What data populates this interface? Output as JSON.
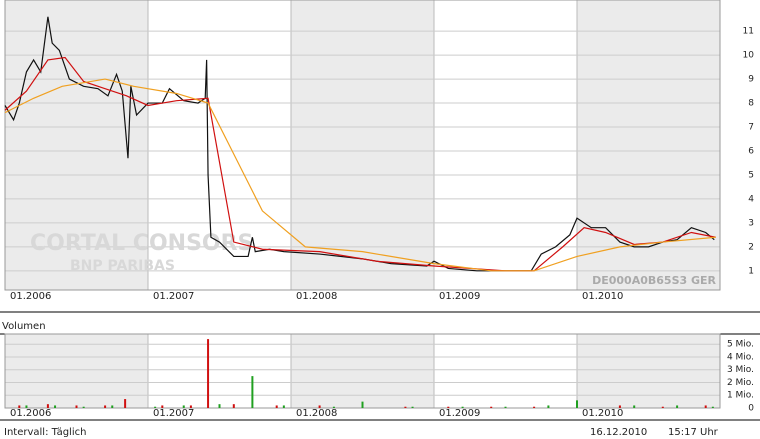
{
  "chart_data": [
    {
      "type": "line",
      "xlim": [
        2006.0,
        2011.0
      ],
      "xticks": [
        {
          "value": 2006,
          "label": "01.2006"
        },
        {
          "value": 2007,
          "label": "01.2007"
        },
        {
          "value": 2008,
          "label": "01.2008"
        },
        {
          "value": 2009,
          "label": "01.2009"
        },
        {
          "value": 2010,
          "label": "01.2010"
        }
      ],
      "ylim": [
        0.2,
        12.3
      ],
      "yticks": [
        1,
        2,
        3,
        4,
        5,
        6,
        7,
        8,
        9,
        10,
        11
      ],
      "grid": true,
      "annotations": [
        "DE000A0B65S3  GER",
        "CORTAL CONSORS",
        "BNP PARIBAS"
      ],
      "series": [
        {
          "color": "#111111",
          "x": [
            2006.0,
            2006.03,
            2006.06,
            2006.1,
            2006.15,
            2006.2,
            2006.25,
            2006.3,
            2006.33,
            2006.38,
            2006.45,
            2006.55,
            2006.65,
            2006.72,
            2006.78,
            2006.82,
            2006.86,
            2006.88,
            2006.92,
            2007.0,
            2007.1,
            2007.15,
            2007.25,
            2007.35,
            2007.4,
            2007.41,
            2007.42,
            2007.44,
            2007.5,
            2007.6,
            2007.7,
            2007.73,
            2007.75,
            2007.85,
            2007.95,
            2008.2,
            2008.5,
            2008.7,
            2008.95,
            2009.0,
            2009.1,
            2009.3,
            2009.5,
            2009.68,
            2009.75,
            2009.85,
            2009.95,
            2010.0,
            2010.1,
            2010.2,
            2010.3,
            2010.4,
            2010.5,
            2010.6,
            2010.7,
            2010.8,
            2010.9,
            2010.96
          ],
          "values": [
            7.9,
            7.6,
            7.3,
            8.0,
            9.3,
            9.8,
            9.3,
            11.6,
            10.5,
            10.2,
            9.0,
            8.7,
            8.6,
            8.3,
            9.2,
            8.5,
            5.7,
            8.7,
            7.5,
            8.0,
            8.0,
            8.6,
            8.1,
            8.0,
            8.2,
            9.8,
            5.0,
            2.4,
            2.2,
            1.6,
            1.6,
            2.4,
            1.8,
            1.9,
            1.8,
            1.7,
            1.5,
            1.3,
            1.2,
            1.4,
            1.1,
            1.0,
            1.0,
            1.0,
            1.7,
            2.0,
            2.5,
            3.2,
            2.8,
            2.8,
            2.2,
            2.0,
            2.0,
            2.2,
            2.3,
            2.8,
            2.6,
            2.3
          ]
        },
        {
          "color": "#d01010",
          "x": [
            2006.0,
            2006.15,
            2006.3,
            2006.42,
            2006.55,
            2006.7,
            2006.85,
            2007.0,
            2007.2,
            2007.42,
            2007.6,
            2007.8,
            2008.2,
            2008.6,
            2009.0,
            2009.5,
            2009.7,
            2009.9,
            2010.05,
            2010.2,
            2010.4,
            2010.6,
            2010.8,
            2010.97
          ],
          "values": [
            7.7,
            8.5,
            9.8,
            9.9,
            8.9,
            8.6,
            8.3,
            7.9,
            8.1,
            8.2,
            2.2,
            1.9,
            1.8,
            1.4,
            1.2,
            1.0,
            1.0,
            2.0,
            2.8,
            2.6,
            2.1,
            2.2,
            2.6,
            2.4
          ]
        },
        {
          "color": "#f0a020",
          "x": [
            2006.0,
            2006.2,
            2006.4,
            2006.7,
            2006.9,
            2007.2,
            2007.42,
            2007.8,
            2008.1,
            2008.5,
            2009.0,
            2009.4,
            2009.7,
            2010.0,
            2010.3,
            2010.6,
            2010.97
          ],
          "values": [
            7.6,
            8.2,
            8.7,
            9.0,
            8.7,
            8.4,
            8.0,
            3.5,
            2.0,
            1.8,
            1.3,
            1.0,
            1.0,
            1.6,
            2.0,
            2.2,
            2.4
          ]
        }
      ]
    },
    {
      "type": "bar",
      "title": "Volumen",
      "xlim": [
        2006.0,
        2011.0
      ],
      "xticks": [
        {
          "value": 2006,
          "label": "01.2006"
        },
        {
          "value": 2007,
          "label": "01.2007"
        },
        {
          "value": 2008,
          "label": "01.2008"
        },
        {
          "value": 2009,
          "label": "01.2009"
        },
        {
          "value": 2010,
          "label": "01.2010"
        }
      ],
      "ylim": [
        0,
        5.8
      ],
      "yticks": [
        0,
        {
          "value": 1,
          "label": "1 Mio."
        },
        {
          "value": 2,
          "label": "2 Mio."
        },
        {
          "value": 3,
          "label": "3 Mio."
        },
        {
          "value": 4,
          "label": "4 Mio."
        },
        {
          "value": 5,
          "label": "5 Mio."
        }
      ],
      "grid": true,
      "series": [
        {
          "color": "#d01010",
          "x": [
            2006.1,
            2006.3,
            2006.5,
            2006.7,
            2006.84,
            2007.1,
            2007.3,
            2007.42,
            2007.6,
            2007.9,
            2008.2,
            2008.5,
            2008.8,
            2009.1,
            2009.4,
            2009.7,
            2010.0,
            2010.3,
            2010.6,
            2010.9
          ],
          "values": [
            0.2,
            0.3,
            0.2,
            0.2,
            0.7,
            0.2,
            0.2,
            5.4,
            0.3,
            0.2,
            0.2,
            0.2,
            0.1,
            0.1,
            0.1,
            0.1,
            0.2,
            0.2,
            0.1,
            0.2
          ]
        },
        {
          "color": "#20a020",
          "x": [
            2006.15,
            2006.35,
            2006.55,
            2006.75,
            2007.05,
            2007.25,
            2007.5,
            2007.73,
            2007.95,
            2008.3,
            2008.5,
            2008.85,
            2009.2,
            2009.5,
            2009.8,
            2010.0,
            2010.4,
            2010.7,
            2010.95
          ],
          "values": [
            0.2,
            0.2,
            0.1,
            0.2,
            0.1,
            0.2,
            0.3,
            2.5,
            0.2,
            0.1,
            0.5,
            0.1,
            0.1,
            0.1,
            0.2,
            0.6,
            0.2,
            0.2,
            0.1
          ]
        }
      ]
    }
  ],
  "footer": {
    "interval": "Intervall: Täglich",
    "date": "16.12.2010",
    "time": "15:17 Uhr"
  }
}
